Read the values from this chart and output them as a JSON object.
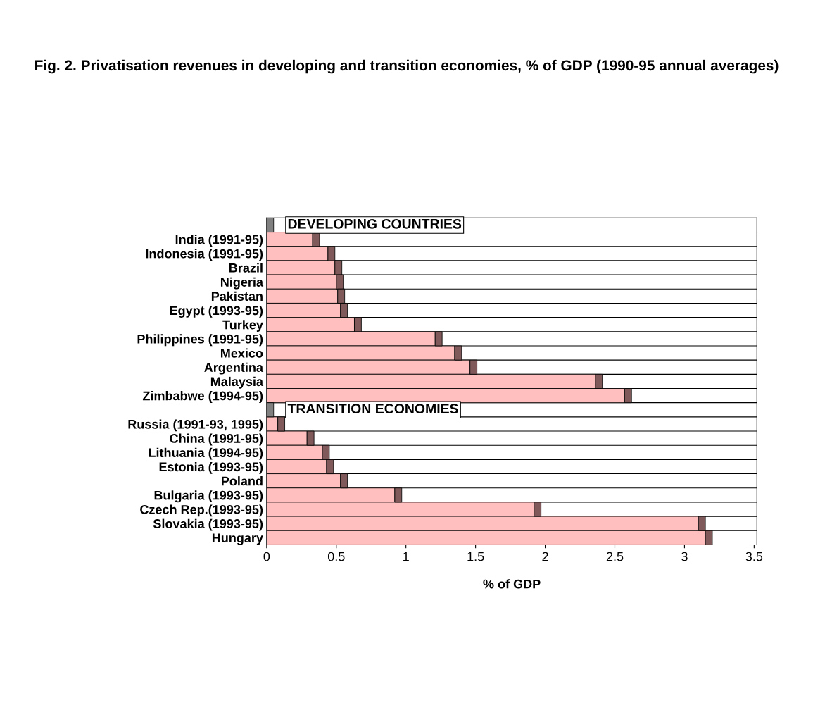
{
  "chart_data": {
    "type": "bar",
    "orientation": "horizontal",
    "stacked": true,
    "title": "Fig. 2. Privatisation revenues in developing and transition economies, % of GDP (1990-95 annual averages)",
    "xlabel": "% of GDP",
    "categories": [
      null,
      "India (1991-95)",
      "Indonesia (1991-95)",
      "Brazil",
      "Nigeria",
      "Pakistan",
      "Egypt (1993-95)",
      "Turkey",
      "Philippines (1991-95)",
      "Mexico",
      "Argentina",
      "Malaysia",
      "Zimbabwe (1994-95)",
      null,
      "Russia (1991-93, 1995)",
      "China (1991-95)",
      "Lithuania (1994-95)",
      "Estonia (1993-95)",
      "Poland",
      "Bulgaria (1993-95)",
      "Czech Rep.(1993-95)",
      "Slovakia (1993-95)",
      "Hungary"
    ],
    "series": [
      {
        "color": "#ffbfbf",
        "values": [
          null,
          0.33,
          0.44,
          0.49,
          0.5,
          0.51,
          0.53,
          0.63,
          1.21,
          1.35,
          1.46,
          2.36,
          2.57,
          null,
          0.08,
          0.29,
          0.4,
          0.43,
          0.53,
          0.92,
          1.92,
          3.1,
          3.15
        ]
      },
      {
        "colors": [
          "#808080",
          "#805a5a",
          "#805a5a",
          "#805a5a",
          "#805a5a",
          "#805a5a",
          "#805a5a",
          "#805a5a",
          "#805a5a",
          "#805a5a",
          "#805a5a",
          "#805a5a",
          "#805a5a",
          "#808080",
          "#805a5a",
          "#805a5a",
          "#805a5a",
          "#805a5a",
          "#805a5a",
          "#805a5a",
          "#805a5a",
          "#805a5a",
          "#805a5a"
        ],
        "values": [
          0.05,
          0.05,
          0.05,
          0.05,
          0.05,
          0.05,
          0.05,
          0.05,
          0.05,
          0.05,
          0.05,
          0.05,
          0.05,
          0.05,
          0.05,
          0.05,
          0.05,
          0.05,
          0.05,
          0.05,
          0.05,
          0.05,
          0.05
        ]
      }
    ],
    "annotations": [
      "DEVELOPING COUNTRIES",
      "TRANSITION ECONOMIES"
    ],
    "xlim": [
      0,
      3.52
    ],
    "xticks": [
      0,
      0.5,
      1,
      1.5,
      2,
      2.5,
      3,
      3.5
    ],
    "grid": "y"
  }
}
